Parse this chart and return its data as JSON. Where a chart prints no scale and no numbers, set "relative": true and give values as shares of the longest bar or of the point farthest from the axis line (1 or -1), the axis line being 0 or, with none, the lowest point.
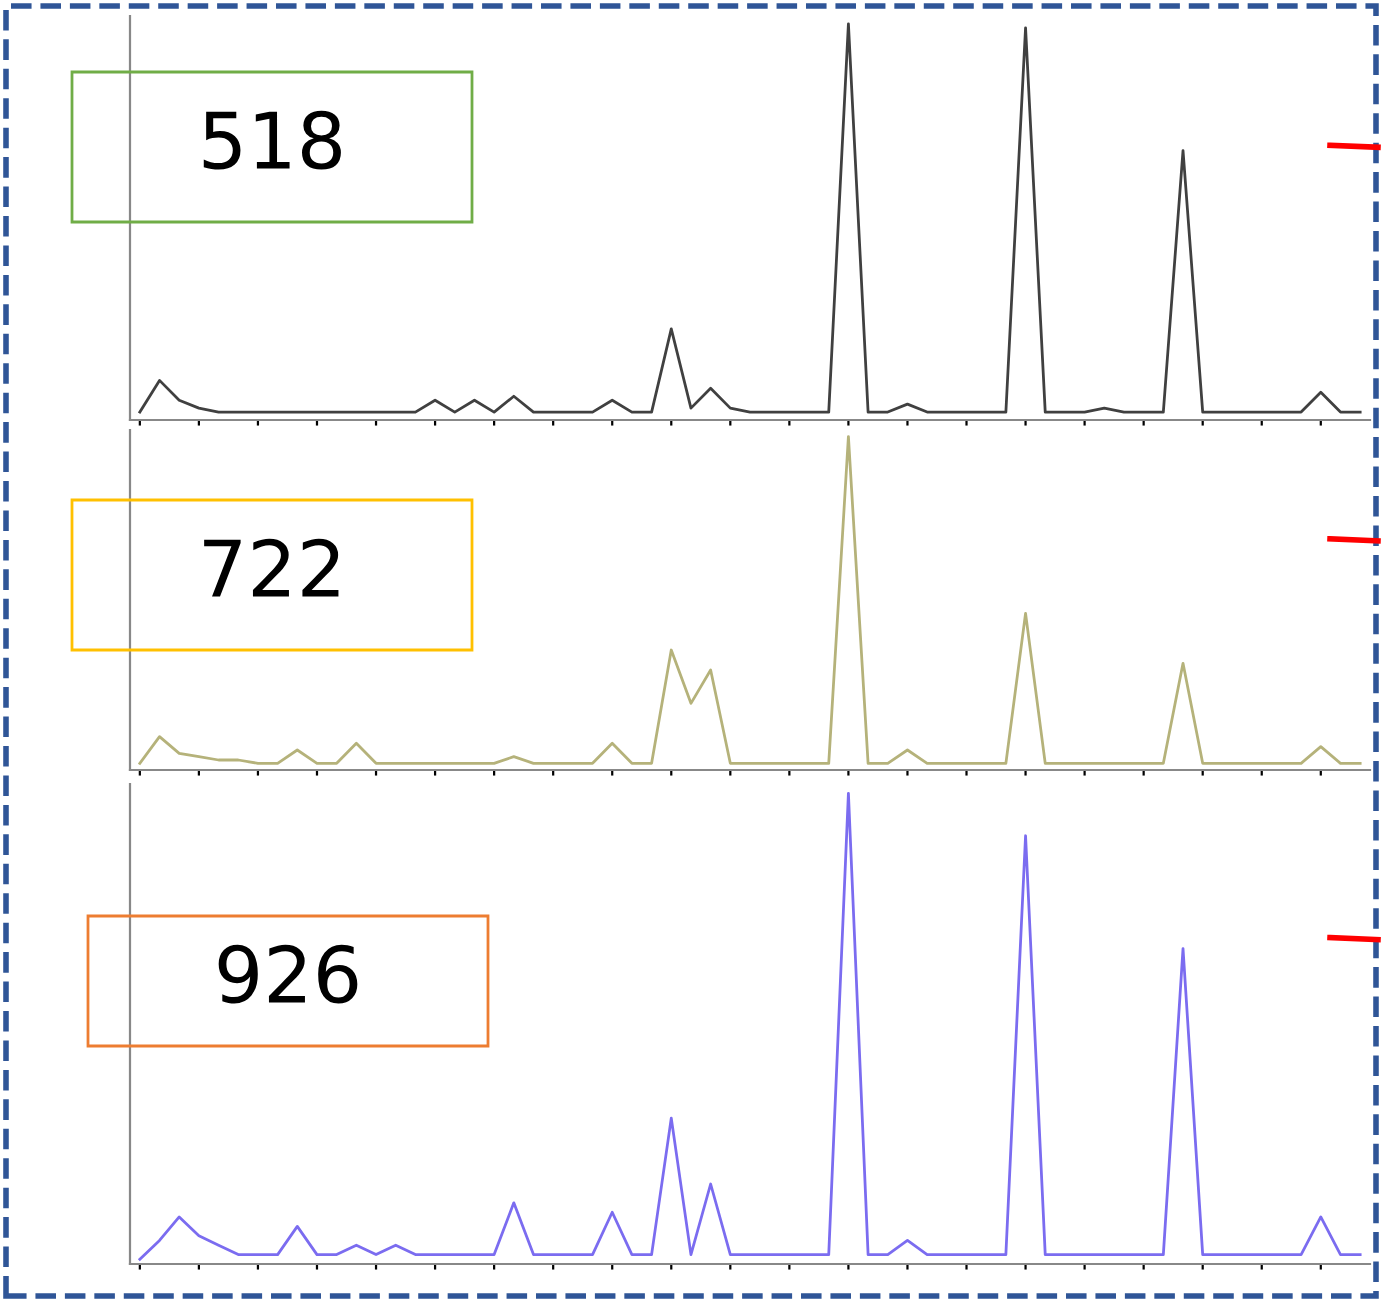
{
  "chart_data": [
    {
      "type": "line",
      "title": "518",
      "relative": true,
      "grid": false,
      "legend": false,
      "categories": [
        null,
        null,
        null,
        null,
        null,
        null,
        null,
        null,
        null,
        null,
        null,
        null,
        null,
        null,
        null,
        null,
        null,
        null,
        null,
        null,
        null,
        null,
        null,
        null,
        null,
        null,
        null,
        null,
        null,
        null,
        null,
        null,
        null,
        null,
        null,
        null,
        null,
        null,
        null,
        null,
        null,
        null,
        null,
        null,
        null,
        null,
        null,
        null,
        null,
        null,
        null,
        null,
        null,
        null,
        null,
        null,
        null,
        null,
        null,
        null,
        null,
        null,
        null
      ],
      "series": [
        {
          "color": "#404040",
          "values": [
            0.02,
            0.1,
            0.05,
            0.03,
            0.02,
            0.02,
            0.02,
            0.02,
            0.02,
            0.02,
            0.02,
            0.02,
            0.02,
            0.02,
            0.02,
            0.05,
            0.02,
            0.05,
            0.02,
            0.06,
            0.02,
            0.02,
            0.02,
            0.02,
            0.05,
            0.02,
            0.02,
            0.23,
            0.03,
            0.08,
            0.03,
            0.02,
            0.02,
            0.02,
            0.02,
            0.02,
            1,
            0.02,
            0.02,
            0.04,
            0.02,
            0.02,
            0.02,
            0.02,
            0.02,
            0.99,
            0.02,
            0.02,
            0.02,
            0.03,
            0.02,
            0.02,
            0.02,
            0.68,
            0.02,
            0.02,
            0.02,
            0.02,
            0.02,
            0.02,
            0.07,
            0.02,
            0.02
          ]
        }
      ]
    },
    {
      "type": "line",
      "title": "722",
      "relative": true,
      "grid": false,
      "legend": false,
      "categories": [
        null,
        null,
        null,
        null,
        null,
        null,
        null,
        null,
        null,
        null,
        null,
        null,
        null,
        null,
        null,
        null,
        null,
        null,
        null,
        null,
        null,
        null,
        null,
        null,
        null,
        null,
        null,
        null,
        null,
        null,
        null,
        null,
        null,
        null,
        null,
        null,
        null,
        null,
        null,
        null,
        null,
        null,
        null,
        null,
        null,
        null,
        null,
        null,
        null,
        null,
        null,
        null,
        null,
        null,
        null,
        null,
        null,
        null,
        null,
        null,
        null,
        null,
        null
      ],
      "series": [
        {
          "color": "#b5b27a",
          "values": [
            0.02,
            0.1,
            0.05,
            0.04,
            0.03,
            0.03,
            0.02,
            0.02,
            0.06,
            0.02,
            0.02,
            0.08,
            0.02,
            0.02,
            0.02,
            0.02,
            0.02,
            0.02,
            0.02,
            0.04,
            0.02,
            0.02,
            0.02,
            0.02,
            0.08,
            0.02,
            0.02,
            0.36,
            0.2,
            0.3,
            0.02,
            0.02,
            0.02,
            0.02,
            0.02,
            0.02,
            1,
            0.02,
            0.02,
            0.06,
            0.02,
            0.02,
            0.02,
            0.02,
            0.02,
            0.47,
            0.02,
            0.02,
            0.02,
            0.02,
            0.02,
            0.02,
            0.02,
            0.32,
            0.02,
            0.02,
            0.02,
            0.02,
            0.02,
            0.02,
            0.07,
            0.02,
            0.02
          ]
        }
      ]
    },
    {
      "type": "line",
      "title": "926",
      "relative": true,
      "grid": false,
      "legend": false,
      "categories": [
        null,
        null,
        null,
        null,
        null,
        null,
        null,
        null,
        null,
        null,
        null,
        null,
        null,
        null,
        null,
        null,
        null,
        null,
        null,
        null,
        null,
        null,
        null,
        null,
        null,
        null,
        null,
        null,
        null,
        null,
        null,
        null,
        null,
        null,
        null,
        null,
        null,
        null,
        null,
        null,
        null,
        null,
        null,
        null,
        null,
        null,
        null,
        null,
        null,
        null,
        null,
        null,
        null,
        null,
        null,
        null,
        null,
        null,
        null,
        null,
        null,
        null,
        null
      ],
      "series": [
        {
          "color": "#7b6cf0",
          "values": [
            0.01,
            0.05,
            0.1,
            0.06,
            0.04,
            0.02,
            0.02,
            0.02,
            0.08,
            0.02,
            0.02,
            0.04,
            0.02,
            0.04,
            0.02,
            0.02,
            0.02,
            0.02,
            0.02,
            0.13,
            0.02,
            0.02,
            0.02,
            0.02,
            0.11,
            0.02,
            0.02,
            0.31,
            0.02,
            0.17,
            0.02,
            0.02,
            0.02,
            0.02,
            0.02,
            0.02,
            1,
            0.02,
            0.02,
            0.05,
            0.02,
            0.02,
            0.02,
            0.02,
            0.02,
            0.91,
            0.02,
            0.02,
            0.02,
            0.02,
            0.02,
            0.02,
            0.02,
            0.67,
            0.02,
            0.02,
            0.02,
            0.02,
            0.02,
            0.02,
            0.1,
            0.02,
            0.02
          ]
        }
      ]
    }
  ]
}
